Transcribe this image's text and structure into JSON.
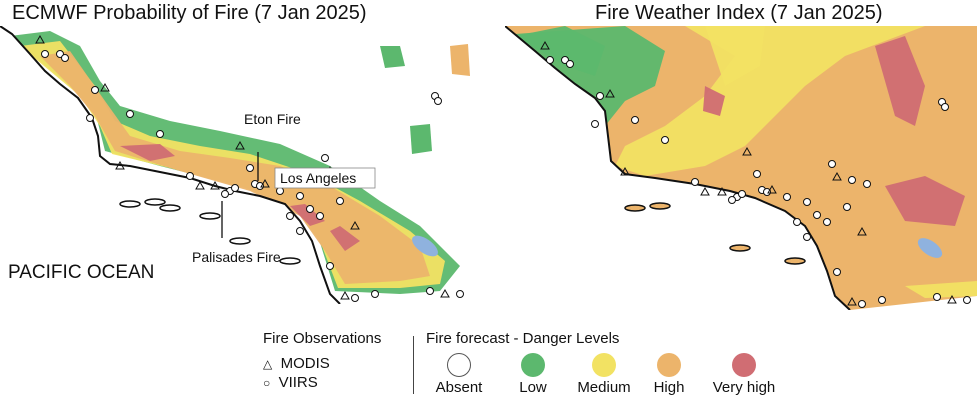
{
  "panels": [
    {
      "title": "ECMWF Probability of Fire (7 Jan 2025)",
      "labels": {
        "eton": "Eton Fire",
        "la": "Los Angeles",
        "palisades": "Palisades Fire",
        "ocean": "PACIFIC OCEAN"
      }
    },
    {
      "title": "Fire Weather Index (7 Jan 2025)"
    }
  ],
  "legend": {
    "observations_title": "Fire Observations",
    "observations": [
      {
        "symbol": "triangle-icon",
        "label": "MODIS"
      },
      {
        "symbol": "circle-icon",
        "label": "VIIRS"
      }
    ],
    "danger_title": "Fire forecast - Danger Levels",
    "levels": [
      {
        "label": "Absent",
        "color": "#ffffff"
      },
      {
        "label": "Low",
        "color": "#5cb86e"
      },
      {
        "label": "Medium",
        "color": "#f2e263"
      },
      {
        "label": "High",
        "color": "#ecb46b"
      },
      {
        "label": "Very high",
        "color": "#d06d73"
      }
    ]
  }
}
